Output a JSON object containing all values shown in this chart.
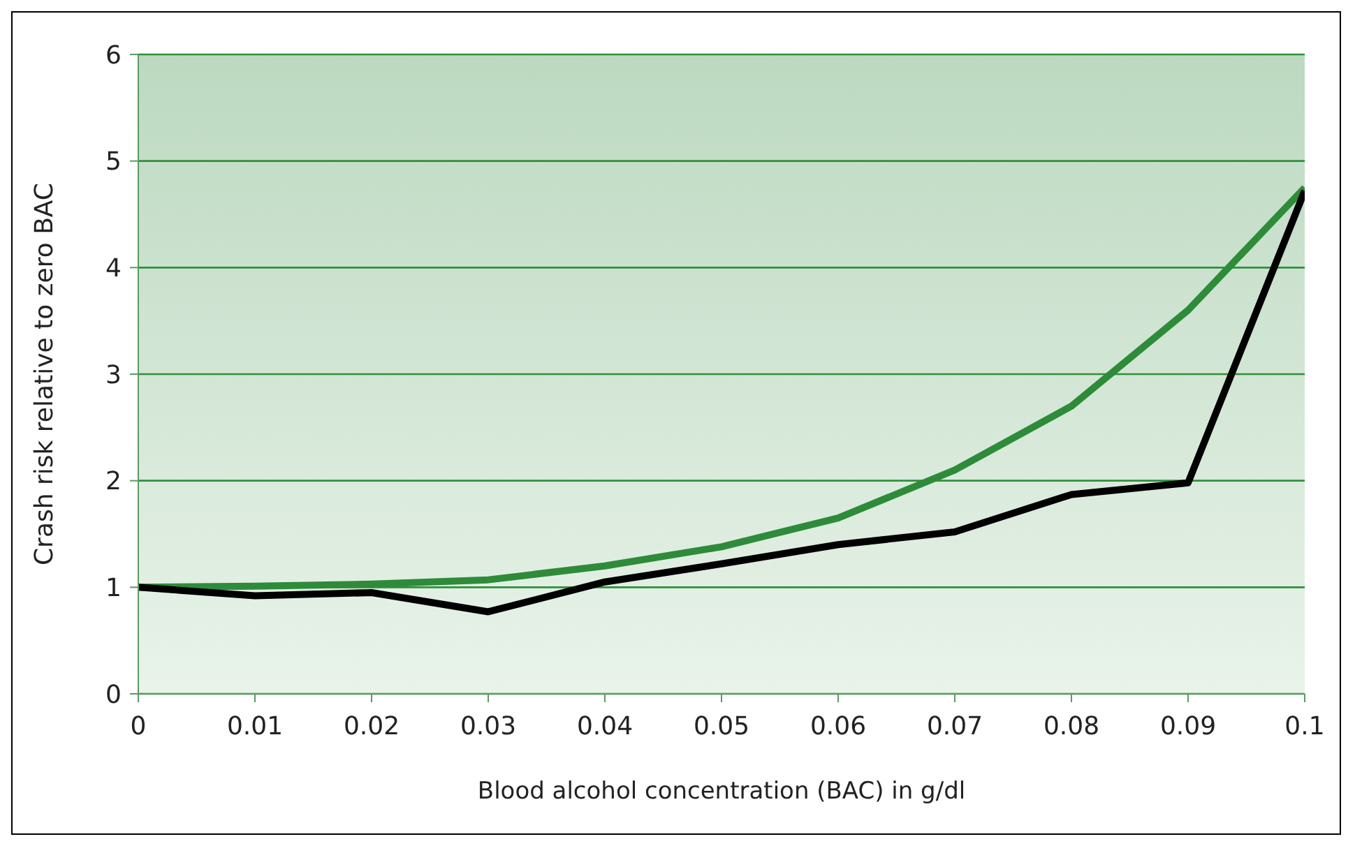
{
  "chart_data": {
    "type": "line",
    "xlabel": "Blood alcohol concentration (BAC) in g/dl",
    "ylabel": "Crash risk relative to zero BAC",
    "x": [
      0,
      0.01,
      0.02,
      0.03,
      0.04,
      0.05,
      0.06,
      0.07,
      0.08,
      0.09,
      0.1
    ],
    "series": [
      {
        "color": "#2e8b3a",
        "values": [
          1.0,
          1.01,
          1.03,
          1.07,
          1.2,
          1.38,
          1.65,
          2.1,
          2.7,
          3.6,
          4.75
        ]
      },
      {
        "color": "#000000",
        "values": [
          1.0,
          0.92,
          0.95,
          0.77,
          1.05,
          1.22,
          1.4,
          1.52,
          1.87,
          1.98,
          4.72
        ]
      }
    ],
    "xlim": [
      0,
      0.1
    ],
    "xticks": [
      0,
      0.01,
      0.02,
      0.03,
      0.04,
      0.05,
      0.06,
      0.07,
      0.08,
      0.09,
      0.1
    ],
    "ylim": [
      0,
      6
    ],
    "yticks": [
      0,
      1,
      2,
      3,
      4,
      5,
      6
    ],
    "grid": "y",
    "marker": "none",
    "line_style": "solid",
    "legend": false
  }
}
